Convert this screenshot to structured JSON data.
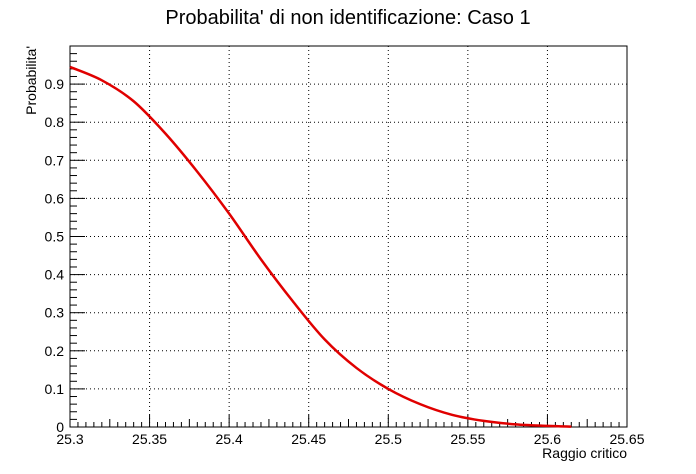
{
  "chart_data": {
    "type": "line",
    "title": "Probabilita' di non identificazione: Caso 1",
    "xlabel": "Raggio critico",
    "ylabel": "Probabilita'",
    "xlim": [
      25.3,
      25.65
    ],
    "ylim": [
      0,
      1.0
    ],
    "grid": true,
    "x_ticks": [
      "25.3",
      "25.35",
      "25.4",
      "25.45",
      "25.5",
      "25.55",
      "25.6",
      "25.65"
    ],
    "y_ticks": [
      "0",
      "0.1",
      "0.2",
      "0.3",
      "0.4",
      "0.5",
      "0.6",
      "0.7",
      "0.8",
      "0.9"
    ],
    "series": [
      {
        "color": "#e00000",
        "x": [
          25.3,
          25.32,
          25.34,
          25.36,
          25.38,
          25.4,
          25.42,
          25.44,
          25.46,
          25.48,
          25.5,
          25.52,
          25.54,
          25.56,
          25.58,
          25.6,
          25.615
        ],
        "y": [
          0.945,
          0.91,
          0.855,
          0.77,
          0.67,
          0.56,
          0.44,
          0.33,
          0.23,
          0.155,
          0.1,
          0.06,
          0.032,
          0.016,
          0.007,
          0.003,
          0.001
        ]
      }
    ]
  }
}
